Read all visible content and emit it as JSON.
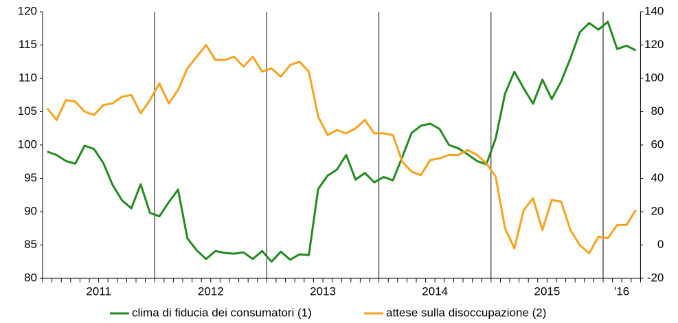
{
  "chart_data": {
    "type": "line",
    "categories": [
      null,
      null,
      null,
      null,
      null,
      "2011",
      null,
      null,
      null,
      null,
      null,
      null,
      null,
      null,
      null,
      null,
      null,
      "2012",
      null,
      null,
      null,
      null,
      null,
      null,
      null,
      null,
      null,
      null,
      null,
      "2013",
      null,
      null,
      null,
      null,
      null,
      null,
      null,
      null,
      null,
      null,
      null,
      "2014",
      null,
      null,
      null,
      null,
      null,
      null,
      null,
      null,
      null,
      null,
      null,
      "2015",
      null,
      null,
      null,
      null,
      null,
      null,
      null,
      "'16",
      null,
      null
    ],
    "series": [
      {
        "name": "clima di fiducia dei consumatori (1)",
        "color": "#23891f",
        "axis": "y",
        "values": [
          99.0,
          98.5,
          97.6,
          97.2,
          99.9,
          99.4,
          97.3,
          94.0,
          91.7,
          90.5,
          94.1,
          89.8,
          89.3,
          91.4,
          93.3,
          86.0,
          84.2,
          82.9,
          84.1,
          83.8,
          83.7,
          83.9,
          82.9,
          84.1,
          82.5,
          84.0,
          82.8,
          83.6,
          83.5,
          93.4,
          95.4,
          96.3,
          98.5,
          94.8,
          95.8,
          94.4,
          95.2,
          94.7,
          98.2,
          101.8,
          102.9,
          103.2,
          102.4,
          100.0,
          99.5,
          98.6,
          97.6,
          97.1,
          101.0,
          107.7,
          111.0,
          108.5,
          106.2,
          109.8,
          106.9,
          109.5,
          113.0,
          116.9,
          118.3,
          117.3,
          118.5,
          114.4,
          114.9,
          114.2
        ]
      },
      {
        "name": "attese sulla disoccupazione (2)",
        "color": "#f5a21f",
        "axis": "y2",
        "values": [
          82,
          75,
          87,
          86,
          80,
          78,
          84,
          85,
          89,
          90,
          79,
          87,
          97,
          85,
          93,
          106,
          113,
          120,
          111,
          111,
          113,
          107,
          113,
          104,
          106,
          101,
          108,
          110,
          104,
          77,
          66,
          69,
          67,
          70,
          75,
          67,
          67,
          66,
          50,
          44,
          42,
          51,
          52,
          54,
          54,
          57,
          54,
          49,
          41,
          10,
          -2,
          21,
          28,
          9,
          27,
          26,
          9,
          0,
          -5,
          5,
          4,
          12,
          12,
          21
        ]
      }
    ],
    "ylim": [
      80,
      120
    ],
    "yticks": [
      80,
      85,
      90,
      95,
      100,
      105,
      110,
      115,
      120
    ],
    "y2lim": [
      -20,
      140
    ],
    "y2ticks": [
      -20,
      0,
      20,
      40,
      60,
      80,
      100,
      120,
      140
    ],
    "legend": "bottom"
  }
}
